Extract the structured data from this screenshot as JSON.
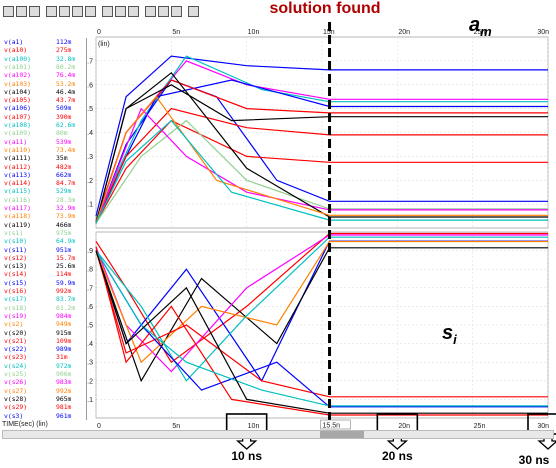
{
  "annotation": {
    "title": "solution found",
    "am_label": "a",
    "am_sub": "m",
    "si_label": "s",
    "si_sub": "i"
  },
  "toolbar_icons": [
    "zoom-in-icon",
    "zoom-out-icon",
    "zoom-fit-icon",
    "grid-icon",
    "cursor-icon",
    "chart-icon",
    "table-icon",
    "nav-left-icon",
    "nav-diamond-icon",
    "nav-right-icon",
    "save-icon",
    "close-icon",
    "settings-icon",
    "help-icon"
  ],
  "time_axis": {
    "label": "TIME(sec) (lin)",
    "ticks": [
      "0",
      "5n",
      "10n",
      "15n",
      "20n",
      "25n",
      "30n"
    ],
    "cursor_label": "15.5n"
  },
  "top_panel": {
    "scale_label": "(lin)",
    "yticks": [
      "0.1",
      "0.2",
      "0.3",
      "0.4",
      "0.5",
      "0.6",
      "0.7"
    ]
  },
  "bottom_panel": {
    "yticks": [
      "0.1",
      "0.2",
      "0.3",
      "0.4",
      "0.5",
      "0.6",
      "0.7",
      "0.8",
      "0.9"
    ]
  },
  "callouts": [
    "10 ns",
    "20 ns",
    "30 ns"
  ],
  "legend": [
    {
      "name": "v(a1)",
      "value": "112m",
      "color": "#0000ff"
    },
    {
      "name": "v(a10)",
      "value": "275m",
      "color": "#ff0000"
    },
    {
      "name": "v(a100)",
      "value": "32.8m",
      "color": "#00c0c0"
    },
    {
      "name": "v(a101)",
      "value": "80.2m",
      "color": "#90d090"
    },
    {
      "name": "v(a102)",
      "value": "76.4m",
      "color": "#ff00ff"
    },
    {
      "name": "v(a103)",
      "value": "53.2m",
      "color": "#ff8000"
    },
    {
      "name": "v(a104)",
      "value": "46.4m",
      "color": "#000000"
    },
    {
      "name": "v(a105)",
      "value": "43.7m",
      "color": "#ff0000"
    },
    {
      "name": "v(a106)",
      "value": "509m",
      "color": "#0000ff"
    },
    {
      "name": "v(a107)",
      "value": "390m",
      "color": "#ff0000"
    },
    {
      "name": "v(a108)",
      "value": "62.6m",
      "color": "#00c0c0"
    },
    {
      "name": "v(a109)",
      "value": "80m",
      "color": "#90d090"
    },
    {
      "name": "v(a11)",
      "value": "539m",
      "color": "#ff00ff"
    },
    {
      "name": "v(a110)",
      "value": "73.4m",
      "color": "#ff8000"
    },
    {
      "name": "v(a111)",
      "value": "35m",
      "color": "#000000"
    },
    {
      "name": "v(a112)",
      "value": "482m",
      "color": "#ff0000"
    },
    {
      "name": "v(a113)",
      "value": "662m",
      "color": "#0000ff"
    },
    {
      "name": "v(a114)",
      "value": "84.7m",
      "color": "#ff0000"
    },
    {
      "name": "v(a115)",
      "value": "529m",
      "color": "#00c0c0"
    },
    {
      "name": "v(a116)",
      "value": "28.3m",
      "color": "#90d090"
    },
    {
      "name": "v(a117)",
      "value": "32.9m",
      "color": "#ff00ff"
    },
    {
      "name": "v(a118)",
      "value": "73.9m",
      "color": "#ff8000"
    },
    {
      "name": "v(a119)",
      "value": "466m",
      "color": "#000000"
    },
    {
      "name": "v(s1)",
      "value": "975m",
      "color": "#90d090"
    },
    {
      "name": "v(s10)",
      "value": "64.9m",
      "color": "#00c0c0"
    },
    {
      "name": "v(s11)",
      "value": "951m",
      "color": "#0000ff"
    },
    {
      "name": "v(s12)",
      "value": "15.7m",
      "color": "#ff0000"
    },
    {
      "name": "v(s13)",
      "value": "25.6m",
      "color": "#000000"
    },
    {
      "name": "v(s14)",
      "value": "114m",
      "color": "#ff0000"
    },
    {
      "name": "v(s15)",
      "value": "59.9m",
      "color": "#0000ff"
    },
    {
      "name": "v(s16)",
      "value": "992m",
      "color": "#ff0000"
    },
    {
      "name": "v(s17)",
      "value": "83.7m",
      "color": "#00c0c0"
    },
    {
      "name": "v(s18)",
      "value": "61.2m",
      "color": "#90d090"
    },
    {
      "name": "v(s19)",
      "value": "984m",
      "color": "#ff00ff"
    },
    {
      "name": "v(s2)",
      "value": "949m",
      "color": "#ff8000"
    },
    {
      "name": "v(s20)",
      "value": "915m",
      "color": "#000000"
    },
    {
      "name": "v(s21)",
      "value": "109m",
      "color": "#ff0000"
    },
    {
      "name": "v(s22)",
      "value": "989m",
      "color": "#0000ff"
    },
    {
      "name": "v(s23)",
      "value": "31m",
      "color": "#ff0000"
    },
    {
      "name": "v(s24)",
      "value": "972m",
      "color": "#00c0c0"
    },
    {
      "name": "v(s25)",
      "value": "906m",
      "color": "#90d090"
    },
    {
      "name": "v(s26)",
      "value": "983m",
      "color": "#ff00ff"
    },
    {
      "name": "v(s27)",
      "value": "992m",
      "color": "#ff8000"
    },
    {
      "name": "v(s28)",
      "value": "965m",
      "color": "#000000"
    },
    {
      "name": "v(s29)",
      "value": "981m",
      "color": "#ff0000"
    },
    {
      "name": "v(s3)",
      "value": "961m",
      "color": "#0000ff"
    }
  ],
  "chart_data": [
    {
      "type": "line",
      "title": "",
      "xlabel": "TIME(sec) (lin)",
      "ylabel": "(lin)",
      "xlim": [
        0,
        3e-08
      ],
      "ylim": [
        0,
        0.8
      ],
      "series_note_count": 119,
      "series": [
        {
          "name": "v(a1)",
          "color": "#0000ff",
          "x": [
            0,
            2e-09,
            5e-09,
            8e-09,
            1.2e-08,
            1.55e-08,
            2e-08,
            3e-08
          ],
          "y": [
            0.02,
            0.35,
            0.62,
            0.55,
            0.2,
            0.112,
            0.112,
            0.112
          ]
        },
        {
          "name": "v(a113)",
          "color": "#0000ff",
          "x": [
            0,
            2e-09,
            5e-09,
            1e-08,
            1.55e-08,
            2e-08,
            3e-08
          ],
          "y": [
            0.05,
            0.55,
            0.72,
            0.68,
            0.662,
            0.662,
            0.662
          ]
        },
        {
          "name": "v(a11)",
          "color": "#ff00ff",
          "x": [
            0,
            2e-09,
            6e-09,
            1e-08,
            1.55e-08,
            2e-08,
            3e-08
          ],
          "y": [
            0.03,
            0.4,
            0.7,
            0.6,
            0.539,
            0.539,
            0.539
          ]
        },
        {
          "name": "v(a115)",
          "color": "#00c0c0",
          "x": [
            0,
            3e-09,
            6e-09,
            1.1e-08,
            1.55e-08,
            2e-08,
            3e-08
          ],
          "y": [
            0.04,
            0.45,
            0.72,
            0.58,
            0.529,
            0.529,
            0.529
          ]
        },
        {
          "name": "v(a106)",
          "color": "#0000ff",
          "x": [
            0,
            2e-09,
            4e-09,
            9e-09,
            1.55e-08,
            2e-08,
            3e-08
          ],
          "y": [
            0.02,
            0.3,
            0.55,
            0.62,
            0.509,
            0.509,
            0.509
          ]
        },
        {
          "name": "v(a112)",
          "color": "#ff0000",
          "x": [
            0,
            2e-09,
            5e-09,
            1e-08,
            1.55e-08,
            2e-08,
            3e-08
          ],
          "y": [
            0.03,
            0.4,
            0.62,
            0.5,
            0.482,
            0.482,
            0.482
          ]
        },
        {
          "name": "v(a119)",
          "color": "#000000",
          "x": [
            0,
            2e-09,
            5e-09,
            9e-09,
            1.55e-08,
            2e-08,
            3e-08
          ],
          "y": [
            0.02,
            0.5,
            0.6,
            0.45,
            0.466,
            0.466,
            0.466
          ]
        },
        {
          "name": "v(a107)",
          "color": "#ff0000",
          "x": [
            0,
            2e-09,
            5e-09,
            1e-08,
            1.55e-08,
            2e-08,
            3e-08
          ],
          "y": [
            0.03,
            0.3,
            0.5,
            0.42,
            0.39,
            0.39,
            0.39
          ]
        },
        {
          "name": "v(a10)",
          "color": "#ff0000",
          "x": [
            0,
            2e-09,
            5e-09,
            1e-08,
            1.55e-08,
            2e-08,
            3e-08
          ],
          "y": [
            0.02,
            0.25,
            0.45,
            0.3,
            0.275,
            0.275,
            0.275
          ]
        },
        {
          "name": "v(a101)",
          "color": "#90d090",
          "x": [
            0,
            3e-09,
            6e-09,
            1e-08,
            1.55e-08,
            2e-08,
            3e-08
          ],
          "y": [
            0.02,
            0.3,
            0.45,
            0.2,
            0.08,
            0.08,
            0.08
          ]
        },
        {
          "name": "v(a102)",
          "color": "#ff00ff",
          "x": [
            0,
            3e-09,
            6e-09,
            1e-08,
            1.55e-08,
            2e-08,
            3e-08
          ],
          "y": [
            0.02,
            0.5,
            0.3,
            0.15,
            0.076,
            0.076,
            0.076
          ]
        },
        {
          "name": "v(a104)",
          "color": "#000000",
          "x": [
            0,
            2e-09,
            5e-09,
            1e-08,
            1.55e-08,
            2e-08,
            3e-08
          ],
          "y": [
            0.02,
            0.5,
            0.65,
            0.25,
            0.046,
            0.046,
            0.046
          ]
        },
        {
          "name": "v(a103)",
          "color": "#ff8000",
          "x": [
            0,
            2e-09,
            4e-09,
            8e-09,
            1.55e-08,
            2e-08,
            3e-08
          ],
          "y": [
            0.02,
            0.4,
            0.55,
            0.2,
            0.053,
            0.053,
            0.053
          ]
        },
        {
          "name": "v(a100)",
          "color": "#00c0c0",
          "x": [
            0,
            2e-09,
            5e-09,
            9e-09,
            1.55e-08,
            2e-08,
            3e-08
          ],
          "y": [
            0.02,
            0.28,
            0.45,
            0.15,
            0.033,
            0.033,
            0.033
          ]
        }
      ]
    },
    {
      "type": "line",
      "title": "",
      "xlabel": "TIME(sec) (lin)",
      "ylabel": "",
      "xlim": [
        0,
        3e-08
      ],
      "ylim": [
        0,
        1.0
      ],
      "series": [
        {
          "name": "v(s16)",
          "color": "#ff0000",
          "x": [
            0,
            2e-09,
            5e-09,
            1e-08,
            1.55e-08,
            2e-08,
            3e-08
          ],
          "y": [
            0.95,
            0.7,
            0.3,
            0.6,
            0.992,
            0.992,
            0.992
          ]
        },
        {
          "name": "v(s11)",
          "color": "#0000ff",
          "x": [
            0,
            2e-09,
            6e-09,
            1.1e-08,
            1.55e-08,
            2e-08,
            3e-08
          ],
          "y": [
            0.9,
            0.4,
            0.8,
            0.2,
            0.951,
            0.951,
            0.951
          ]
        },
        {
          "name": "v(s20)",
          "color": "#000000",
          "x": [
            0,
            3e-09,
            7e-09,
            1.2e-08,
            1.55e-08,
            2e-08,
            3e-08
          ],
          "y": [
            0.9,
            0.2,
            0.75,
            0.4,
            0.915,
            0.915,
            0.915
          ]
        },
        {
          "name": "v(s19)",
          "color": "#ff00ff",
          "x": [
            0,
            2e-09,
            5e-09,
            1e-08,
            1.55e-08,
            2e-08,
            3e-08
          ],
          "y": [
            0.92,
            0.5,
            0.25,
            0.7,
            0.984,
            0.984,
            0.984
          ]
        },
        {
          "name": "v(s2)",
          "color": "#ff8000",
          "x": [
            0,
            3e-09,
            7e-09,
            1.2e-08,
            1.55e-08,
            2e-08,
            3e-08
          ],
          "y": [
            0.9,
            0.3,
            0.6,
            0.5,
            0.949,
            0.949,
            0.949
          ]
        },
        {
          "name": "v(s24)",
          "color": "#00c0c0",
          "x": [
            0,
            3e-09,
            6e-09,
            1e-08,
            1.55e-08,
            2e-08,
            3e-08
          ],
          "y": [
            0.9,
            0.6,
            0.2,
            0.55,
            0.972,
            0.972,
            0.972
          ]
        },
        {
          "name": "v(s14)",
          "color": "#ff0000",
          "x": [
            0,
            2e-09,
            6e-09,
            1.1e-08,
            1.55e-08,
            2e-08,
            3e-08
          ],
          "y": [
            0.9,
            0.35,
            0.5,
            0.2,
            0.114,
            0.114,
            0.114
          ]
        },
        {
          "name": "v(s15)",
          "color": "#0000ff",
          "x": [
            0,
            3e-09,
            7e-09,
            1.2e-08,
            1.55e-08,
            2e-08,
            3e-08
          ],
          "y": [
            0.9,
            0.5,
            0.15,
            0.3,
            0.06,
            0.06,
            0.06
          ]
        },
        {
          "name": "v(s12)",
          "color": "#ff0000",
          "x": [
            0,
            2e-09,
            5e-09,
            9e-09,
            1.55e-08,
            2e-08,
            3e-08
          ],
          "y": [
            0.92,
            0.3,
            0.6,
            0.1,
            0.016,
            0.016,
            0.016
          ]
        },
        {
          "name": "v(s10)",
          "color": "#00c0c0",
          "x": [
            0,
            3e-09,
            6e-09,
            1.1e-08,
            1.55e-08,
            2e-08,
            3e-08
          ],
          "y": [
            0.9,
            0.5,
            0.3,
            0.15,
            0.065,
            0.065,
            0.065
          ]
        },
        {
          "name": "v(s13)",
          "color": "#000000",
          "x": [
            0,
            2e-09,
            6e-09,
            1e-08,
            1.55e-08,
            2e-08,
            3e-08
          ],
          "y": [
            0.9,
            0.4,
            0.7,
            0.1,
            0.026,
            0.026,
            0.026
          ]
        }
      ]
    }
  ]
}
